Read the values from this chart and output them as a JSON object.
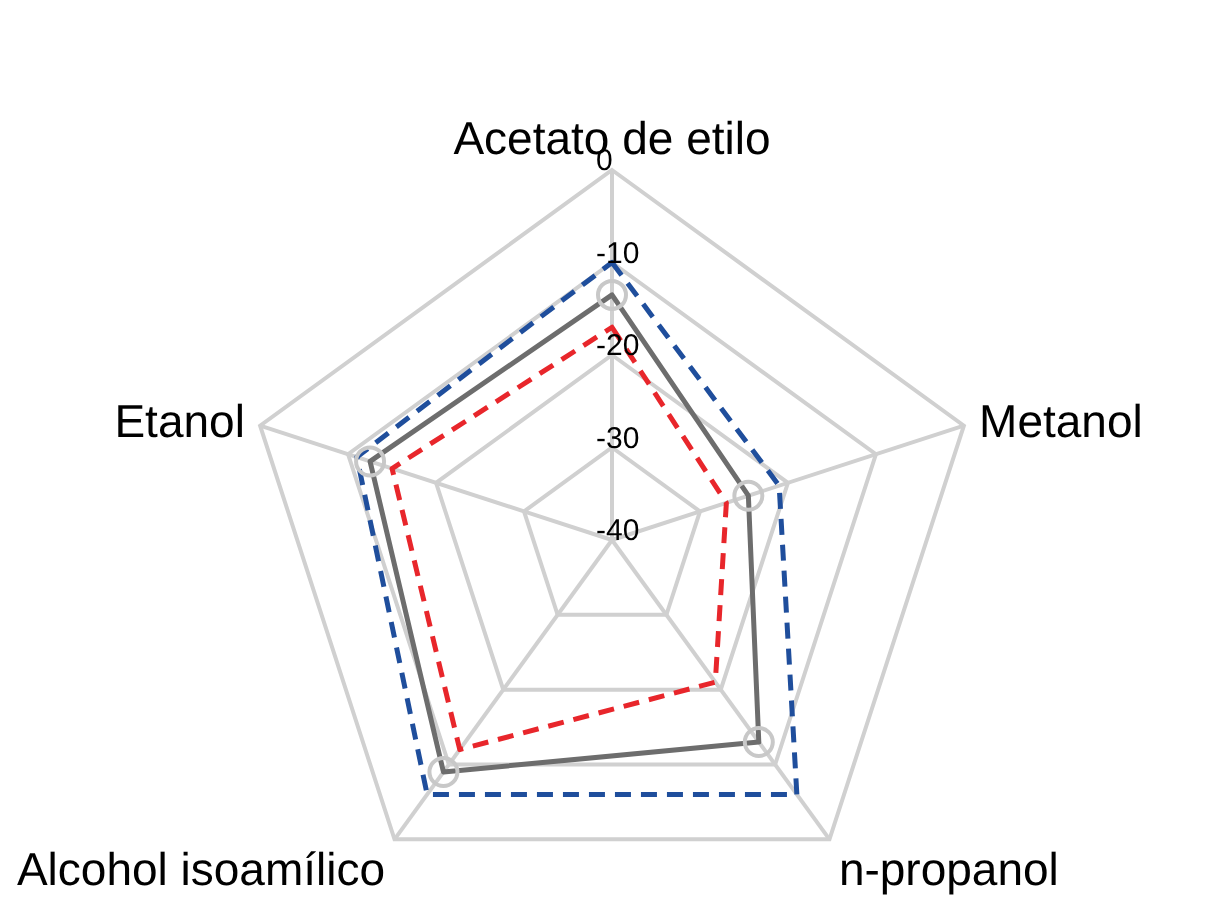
{
  "chart_data": {
    "type": "radar",
    "categories": [
      "Acetato de etilo",
      "Metanol",
      "n-propanol",
      "Alcohol isoamílico",
      "Etanol"
    ],
    "ylim": [
      -40,
      0
    ],
    "yticks": [
      0,
      -10,
      -20,
      -30,
      -40
    ],
    "grid": true,
    "series": [
      {
        "color": "#1f4e9c",
        "line_style": "dashed",
        "marker": "none",
        "values": [
          -10,
          -21,
          -6,
          -6,
          -11
        ]
      },
      {
        "color": "#e8262b",
        "line_style": "dashed",
        "marker": "none",
        "values": [
          -17,
          -27,
          -21,
          -12,
          -15
        ]
      },
      {
        "color": "#6d6d6d",
        "line_style": "solid",
        "marker": "circle",
        "values": [
          -13.5,
          -24.5,
          -13,
          -9,
          -12.5
        ]
      }
    ]
  }
}
